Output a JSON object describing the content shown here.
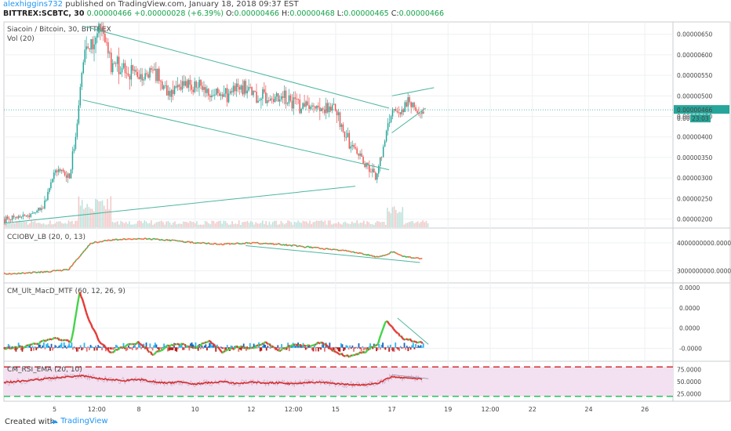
{
  "header": {
    "user": "alexhiggins732",
    "published": "published on TradingView.com, January 18, 2018 09:37 EST",
    "symbol": "BITTREX:SCBTC, 30",
    "last": "0.00000466",
    "change": "+0.00000028 (+6.39%)",
    "ohlc_open_label": "O:",
    "ohlc_open": "0.00000466",
    "ohlc_high_label": "H:",
    "ohlc_high": "0.00000468",
    "ohlc_low_label": "L:",
    "ohlc_low": "0.00000465",
    "ohlc_close_label": "C:",
    "ohlc_close": "0.00000466"
  },
  "footer": {
    "created": "Created with",
    "brand": "TradingView"
  },
  "colors": {
    "up": "#26a69a",
    "down": "#ef5350",
    "trendline": "#4db6a0",
    "rsi_bg": "#f3e0f0",
    "rsi_band_line": "#d32f2f",
    "rsi_low_line": "#22c55e",
    "price_label": "#26a69a",
    "grid": "#eef0f3"
  },
  "chart_data": [
    {
      "type": "candlestick",
      "pane": "price",
      "title": "Siacoin / Bitcoin, 30, BITTREX",
      "subtitle": "Vol (20)",
      "y_ticks": [
        "0.00000650",
        "0.00000600",
        "0.00000550",
        "0.00000500",
        "0.00000450",
        "0.00000400",
        "0.00000350",
        "0.00000300",
        "0.00000250",
        "0.00000200"
      ],
      "y_tick_values": [
        6.5e-06,
        6e-06,
        5.5e-06,
        5e-06,
        4.5e-06,
        4e-06,
        3.5e-06,
        3e-06,
        2.5e-06,
        2e-06
      ],
      "ylim": [
        1.8e-06,
        6.8e-06
      ],
      "current_price_label": "0.00000466",
      "countdown_label": "23:03",
      "partial_tick_label": "0.000",
      "x_labels": [
        "5",
        "12:00",
        "8",
        "10",
        "12",
        "12:00",
        "15",
        "17",
        "19",
        "12:00",
        "22",
        "24",
        "26"
      ],
      "x_label_days": [
        5.0,
        6.5,
        8.0,
        10.0,
        12.0,
        13.5,
        15.0,
        17.0,
        19.0,
        20.5,
        22.0,
        24.0,
        26.0
      ],
      "xlim": [
        3.2,
        27.0
      ],
      "price_path_days": [
        3.2,
        4.0,
        4.6,
        5.0,
        5.5,
        5.8,
        6.0,
        6.2,
        6.6,
        7.0,
        7.5,
        8.0,
        8.5,
        9.0,
        9.5,
        10.0,
        10.5,
        11.0,
        11.5,
        12.0,
        12.5,
        13.0,
        13.5,
        14.0,
        14.5,
        15.0,
        15.3,
        15.6,
        16.0,
        16.2,
        16.4,
        16.6,
        16.8,
        17.0,
        17.3,
        17.6,
        17.9,
        18.1
      ],
      "price_path_values": [
        2e-06,
        2.1e-06,
        2.3e-06,
        3.2e-06,
        3e-06,
        4.3e-06,
        6e-06,
        6.1e-06,
        6.6e-06,
        5.8e-06,
        5.7e-06,
        5.4e-06,
        5.6e-06,
        5.1e-06,
        5.3e-06,
        5.2e-06,
        5.1e-06,
        5e-06,
        5.2e-06,
        5.1e-06,
        4.9e-06,
        5e-06,
        4.8e-06,
        4.7e-06,
        4.7e-06,
        4.6e-06,
        4.1e-06,
        3.7e-06,
        3.4e-06,
        3.2e-06,
        3e-06,
        3.5e-06,
        4.2e-06,
        4.7e-06,
        4.6e-06,
        4.9e-06,
        4.6e-06,
        4.7e-06
      ],
      "trendlines": [
        {
          "from": [
            6.0,
            6.7e-06
          ],
          "to": [
            16.9,
            4.7e-06
          ]
        },
        {
          "from": [
            6.0,
            4.9e-06
          ],
          "to": [
            16.9,
            3.2e-06
          ]
        },
        {
          "from": [
            3.2,
            1.9e-06
          ],
          "to": [
            15.7,
            2.8e-06
          ]
        },
        {
          "from": [
            17.0,
            5e-06
          ],
          "to": [
            18.5,
            5.2e-06
          ]
        },
        {
          "from": [
            17.0,
            4.1e-06
          ],
          "to": [
            18.2,
            4.7e-06
          ]
        }
      ]
    },
    {
      "type": "line",
      "pane": "ccobv",
      "title": "CCIOBV_LB (20, 0, 13)",
      "y_ticks": [
        "4000000000.0000",
        "3000000000.0000"
      ],
      "y_tick_values": [
        4000000000,
        3000000000
      ],
      "ylim": [
        2600000000,
        4500000000
      ],
      "x": [
        3.2,
        4.5,
        5.5,
        5.9,
        6.3,
        7.0,
        8.0,
        9.0,
        10.0,
        11.0,
        12.0,
        13.0,
        14.0,
        15.0,
        15.5,
        16.0,
        16.5,
        16.8,
        17.0,
        17.3,
        17.6,
        18.0
      ],
      "values": [
        2900000000,
        2950000000,
        3050000000,
        3500000000,
        4000000000,
        4100000000,
        4150000000,
        4100000000,
        4000000000,
        3950000000,
        4000000000,
        3950000000,
        3850000000,
        3750000000,
        3700000000,
        3600000000,
        3500000000,
        3550000000,
        3700000000,
        3550000000,
        3500000000,
        3450000000
      ],
      "trendline": {
        "from": [
          11.8,
          3900000000
        ],
        "to": [
          18.0,
          3300000000
        ]
      }
    },
    {
      "type": "bar",
      "pane": "macd",
      "title": "CM_Ult_MacD_MTF (60, 12, 26, 9)",
      "y_ticks": [
        "0.0000",
        "0.0000",
        "0.0000",
        "-0.0000"
      ],
      "y_tick_values": [
        3,
        2,
        1,
        0
      ],
      "ylim": [
        -0.6,
        3.2
      ],
      "x": [
        3.2,
        4.0,
        5.0,
        5.6,
        5.9,
        6.2,
        6.6,
        7.0,
        7.5,
        8.0,
        8.5,
        9.0,
        9.5,
        10.0,
        10.5,
        11.0,
        11.5,
        12.0,
        12.5,
        13.0,
        13.5,
        14.0,
        14.5,
        15.0,
        15.5,
        16.0,
        16.5,
        16.8,
        17.1,
        17.4,
        17.7,
        18.0
      ],
      "values": [
        0.0,
        0.1,
        0.5,
        0.3,
        2.8,
        1.5,
        0.3,
        -0.2,
        0.1,
        0.3,
        -0.3,
        0.1,
        0.2,
        0.0,
        0.4,
        -0.2,
        0.1,
        0.0,
        0.3,
        -0.1,
        0.2,
        0.1,
        0.3,
        -0.2,
        -0.4,
        -0.2,
        0.2,
        1.4,
        0.9,
        0.5,
        0.4,
        0.3
      ],
      "trendline": {
        "from": [
          17.2,
          1.5
        ],
        "to": [
          18.3,
          0.2
        ]
      }
    },
    {
      "type": "line",
      "pane": "rsi",
      "title": "CM_RSI_EMA (20, 10)",
      "y_ticks": [
        "75.0000",
        "50.0000",
        "25.0000"
      ],
      "y_tick_values": [
        75,
        50,
        25
      ],
      "ylim": [
        10,
        90
      ],
      "band_upper": 80,
      "band_lower": 20,
      "x": [
        3.2,
        4.0,
        4.5,
        5.0,
        5.5,
        6.0,
        6.5,
        7.0,
        7.5,
        8.0,
        8.5,
        9.0,
        9.5,
        10.0,
        10.5,
        11.0,
        11.5,
        12.0,
        12.5,
        13.0,
        13.5,
        14.0,
        14.5,
        15.0,
        15.5,
        16.0,
        16.5,
        17.0,
        17.3,
        17.6,
        17.9,
        18.1
      ],
      "values": [
        48,
        52,
        55,
        58,
        60,
        62,
        57,
        54,
        52,
        55,
        50,
        47,
        50,
        45,
        48,
        50,
        46,
        49,
        47,
        48,
        45,
        48,
        49,
        46,
        44,
        43,
        47,
        60,
        58,
        59,
        56,
        55
      ],
      "trendline": {
        "from": [
          17.0,
          64
        ],
        "to": [
          18.3,
          56
        ]
      }
    }
  ]
}
